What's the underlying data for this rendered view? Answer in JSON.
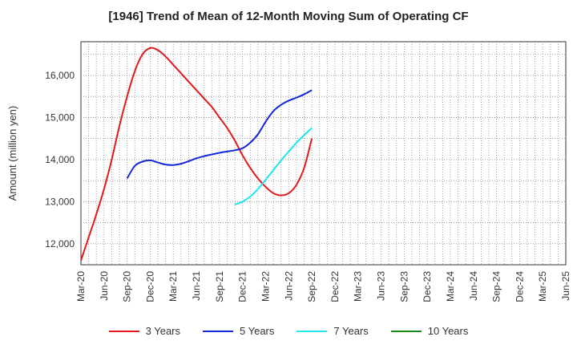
{
  "chart_data": {
    "type": "line",
    "title": "[1946]  Trend of Mean of 12-Month Moving Sum of Operating CF",
    "xlabel": "",
    "ylabel": "Amount (million yen)",
    "ylim": [
      11500,
      16800
    ],
    "yticks": [
      12000,
      13000,
      14000,
      15000,
      16000
    ],
    "ytick_labels": [
      "12,000",
      "13,000",
      "14,000",
      "15,000",
      "16,000"
    ],
    "xticks": [
      "Mar-20",
      "Jun-20",
      "Sep-20",
      "Dec-20",
      "Mar-21",
      "Jun-21",
      "Sep-21",
      "Dec-21",
      "Mar-22",
      "Jun-22",
      "Sep-22",
      "Dec-22",
      "Mar-23",
      "Jun-23",
      "Sep-23",
      "Dec-23",
      "Mar-24",
      "Jun-24",
      "Sep-24",
      "Dec-24",
      "Mar-25",
      "Jun-25"
    ],
    "grid": true,
    "legend_position": "bottom",
    "series": [
      {
        "name": "3 Years",
        "color": "#e31a1c",
        "points": [
          [
            0,
            11600
          ],
          [
            1,
            12150
          ],
          [
            2,
            12700
          ],
          [
            3,
            13300
          ],
          [
            4,
            14000
          ],
          [
            5,
            14800
          ],
          [
            6,
            15500
          ],
          [
            7,
            16100
          ],
          [
            8,
            16500
          ],
          [
            9,
            16650
          ],
          [
            10,
            16600
          ],
          [
            11,
            16450
          ],
          [
            12,
            16250
          ],
          [
            13,
            16050
          ],
          [
            14,
            15850
          ],
          [
            15,
            15650
          ],
          [
            16,
            15450
          ],
          [
            17,
            15250
          ],
          [
            18,
            15000
          ],
          [
            19,
            14750
          ],
          [
            20,
            14450
          ],
          [
            21,
            14100
          ],
          [
            22,
            13800
          ],
          [
            23,
            13550
          ],
          [
            24,
            13350
          ],
          [
            25,
            13200
          ],
          [
            26,
            13150
          ],
          [
            27,
            13200
          ],
          [
            28,
            13400
          ],
          [
            29,
            13800
          ],
          [
            30,
            14500
          ]
        ]
      },
      {
        "name": "5 Years",
        "color": "#1428d6",
        "points": [
          [
            6,
            13550
          ],
          [
            7,
            13850
          ],
          [
            8,
            13950
          ],
          [
            9,
            13980
          ],
          [
            10,
            13930
          ],
          [
            11,
            13880
          ],
          [
            12,
            13870
          ],
          [
            13,
            13900
          ],
          [
            14,
            13960
          ],
          [
            15,
            14030
          ],
          [
            16,
            14080
          ],
          [
            17,
            14120
          ],
          [
            18,
            14160
          ],
          [
            19,
            14190
          ],
          [
            20,
            14220
          ],
          [
            21,
            14270
          ],
          [
            22,
            14400
          ],
          [
            23,
            14600
          ],
          [
            24,
            14900
          ],
          [
            25,
            15150
          ],
          [
            26,
            15300
          ],
          [
            27,
            15400
          ],
          [
            28,
            15470
          ],
          [
            29,
            15550
          ],
          [
            30,
            15650
          ]
        ]
      },
      {
        "name": "7 Years",
        "color": "#22e6ee",
        "points": [
          [
            20,
            12930
          ],
          [
            21,
            13000
          ],
          [
            22,
            13120
          ],
          [
            23,
            13300
          ],
          [
            24,
            13520
          ],
          [
            25,
            13750
          ],
          [
            26,
            13980
          ],
          [
            27,
            14190
          ],
          [
            28,
            14400
          ],
          [
            29,
            14580
          ],
          [
            30,
            14750
          ]
        ]
      },
      {
        "name": "10 Years",
        "color": "#1a8a1a",
        "points": []
      }
    ]
  }
}
